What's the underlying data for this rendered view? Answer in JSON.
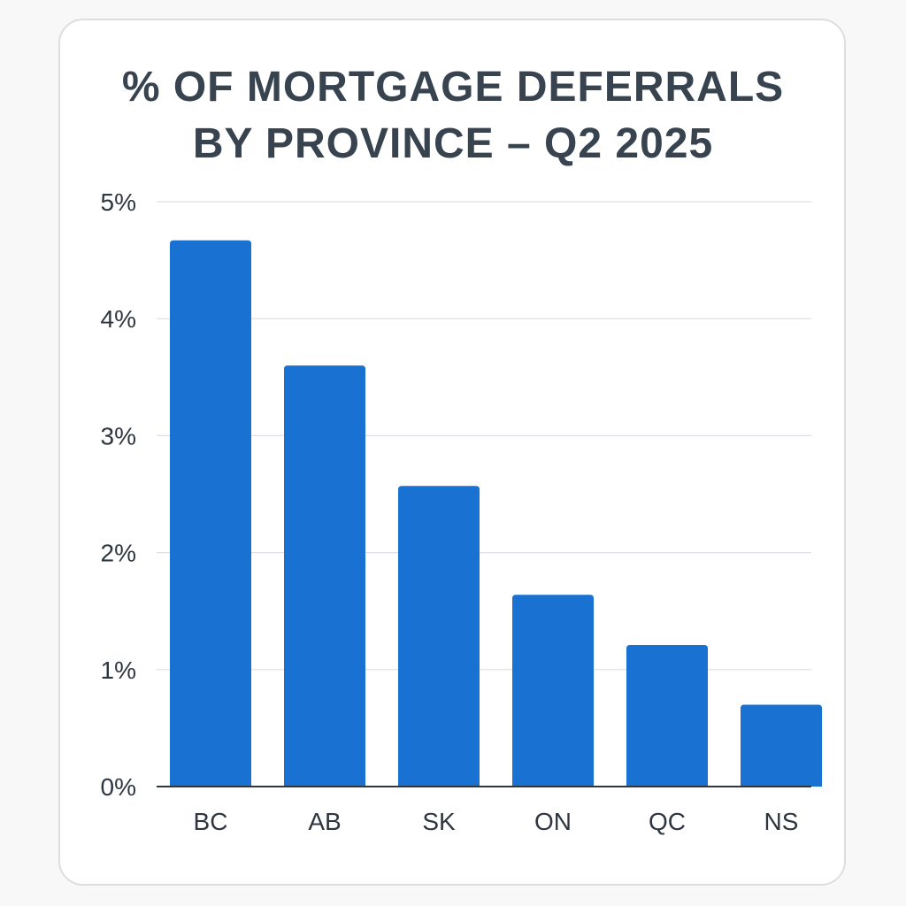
{
  "chart_data": {
    "type": "bar",
    "title_lines": [
      "% OF MORTGAGE DEFERRALS",
      "BY PROVINCE – Q2 2025"
    ],
    "categories": [
      "BC",
      "AB",
      "SK",
      "ON",
      "QC",
      "NS"
    ],
    "values": [
      4.67,
      3.6,
      2.57,
      1.64,
      1.21,
      0.7
    ],
    "unit": "%",
    "ylim": [
      0,
      5
    ],
    "yticks": [
      0,
      1,
      2,
      3,
      4,
      5
    ],
    "ytick_labels": [
      "0%",
      "1%",
      "2%",
      "3%",
      "4%",
      "5%"
    ],
    "grid": true,
    "legend": "none",
    "bar_color": "#1971d1"
  }
}
